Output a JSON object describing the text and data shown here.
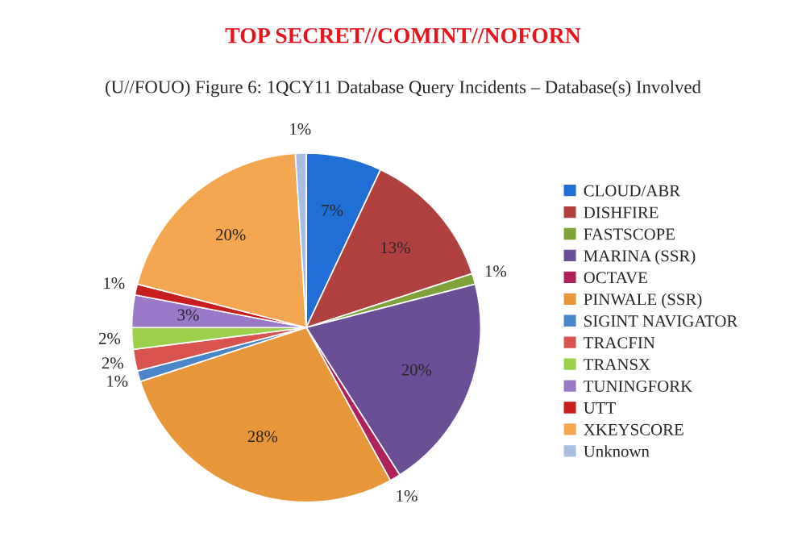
{
  "chart_data": {
    "type": "pie",
    "title": "TOP SECRET//COMINT//NOFORN",
    "subtitle": "(U//FOUO) Figure 6: 1QCY11 Database Query Incidents – Database(s) Involved",
    "categories": [
      "CLOUD/ABR",
      "DISHFIRE",
      "FASTSCOPE",
      "MARINA (SSR)",
      "OCTAVE",
      "PINWALE (SSR)",
      "SIGINT NAVIGATOR",
      "TRACFIN",
      "TRANSX",
      "TUNINGFORK",
      "UTT",
      "XKEYSCORE",
      "Unknown"
    ],
    "values": [
      7,
      13,
      1,
      20,
      1,
      28,
      1,
      2,
      2,
      3,
      1,
      20,
      1
    ],
    "value_labels": [
      "7%",
      "13%",
      "1%",
      "20%",
      "1%",
      "28%",
      "1%",
      "2%",
      "2%",
      "3%",
      "1%",
      "20%",
      "1%"
    ],
    "colors": [
      "#1f6fd6",
      "#b0413e",
      "#7fa33a",
      "#6a4f96",
      "#b0205a",
      "#e8963a",
      "#4a86c8",
      "#d9534f",
      "#9bd04a",
      "#9a7ac8",
      "#c81e1e",
      "#f5a650",
      "#a8bde0"
    ],
    "legend": "right"
  }
}
